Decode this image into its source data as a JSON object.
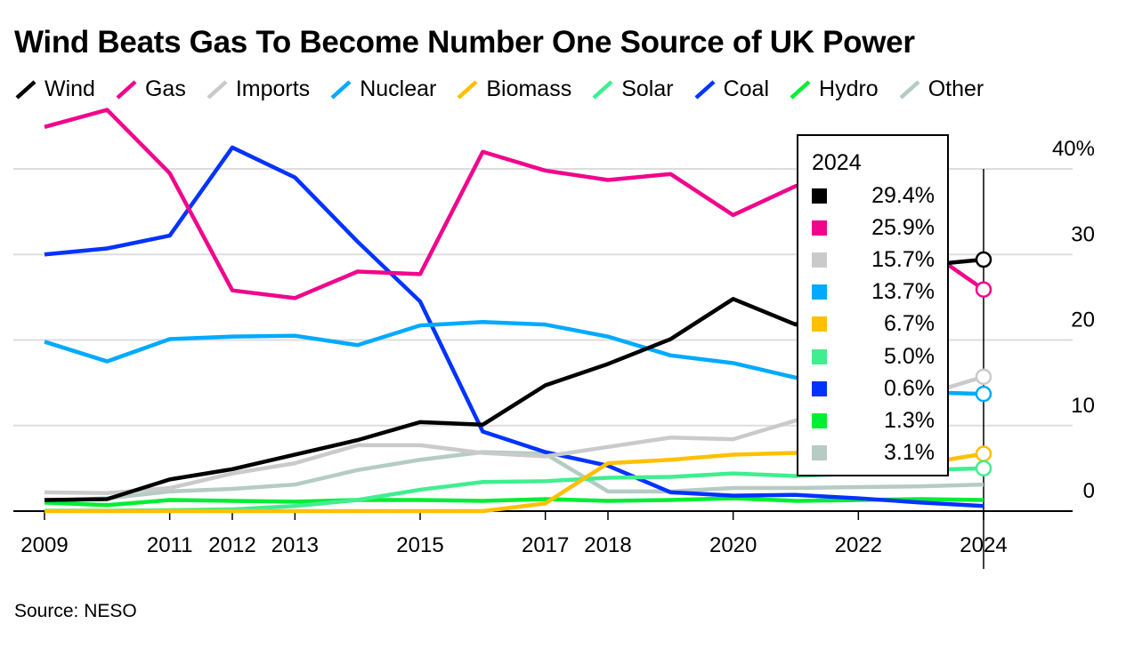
{
  "chart_data": {
    "type": "line",
    "title": "Wind Beats Gas To Become Number One Source of UK Power",
    "source": "Source: NESO",
    "xlabel": "",
    "ylabel": "",
    "ylim": [
      0,
      40
    ],
    "yticks": [
      0,
      10,
      20,
      30,
      40
    ],
    "ytick_labels": [
      "0",
      "10",
      "20",
      "30",
      "40%"
    ],
    "y_axis_side": "right",
    "grid": true,
    "legend_placement": "top",
    "x": [
      2009,
      2010,
      2011,
      2012,
      2013,
      2014,
      2015,
      2016,
      2017,
      2018,
      2019,
      2020,
      2021,
      2022,
      2023,
      2024
    ],
    "xtick_labels": [
      "2009",
      "2011",
      "2012",
      "2013",
      "2015",
      "2017",
      "2018",
      "2020",
      "2022",
      "2024"
    ],
    "series": [
      {
        "name": "Wind",
        "color": "#000000",
        "values": [
          1.3,
          1.4,
          3.7,
          4.9,
          6.6,
          8.3,
          10.4,
          10.1,
          14.7,
          17.2,
          20.1,
          24.8,
          21.8,
          26.5,
          28.7,
          29.4
        ]
      },
      {
        "name": "Gas",
        "color": "#f0068c",
        "values": [
          44.9,
          46.9,
          39.5,
          25.8,
          24.9,
          28.0,
          27.7,
          42.0,
          39.8,
          38.7,
          39.4,
          34.6,
          38.0,
          38.5,
          31.0,
          25.9
        ]
      },
      {
        "name": "Imports",
        "color": "#cacaca",
        "values": [
          2.2,
          2.1,
          2.7,
          4.4,
          5.6,
          7.7,
          7.7,
          6.8,
          6.4,
          7.5,
          8.6,
          8.4,
          10.6,
          11.2,
          13.5,
          15.7
        ]
      },
      {
        "name": "Nuclear",
        "color": "#00aaff",
        "values": [
          19.8,
          17.5,
          20.1,
          20.4,
          20.5,
          19.4,
          21.7,
          22.1,
          21.8,
          20.4,
          18.2,
          17.3,
          15.6,
          14.7,
          13.9,
          13.7
        ]
      },
      {
        "name": "Biomass",
        "color": "#ffc000",
        "values": [
          0,
          0,
          0,
          0,
          0,
          0,
          0,
          0,
          0.9,
          5.6,
          6.0,
          6.6,
          6.8,
          6.5,
          5.5,
          6.7
        ]
      },
      {
        "name": "Solar",
        "color": "#40ee90",
        "values": [
          0.05,
          0.05,
          0.1,
          0.2,
          0.6,
          1.3,
          2.5,
          3.4,
          3.5,
          3.9,
          4.0,
          4.4,
          4.1,
          4.4,
          4.8,
          5.0
        ]
      },
      {
        "name": "Coal",
        "color": "#0033ff",
        "values": [
          30.0,
          30.7,
          32.2,
          42.5,
          39.0,
          31.5,
          24.5,
          9.3,
          6.9,
          5.3,
          2.2,
          1.8,
          1.9,
          1.5,
          1.0,
          0.6
        ]
      },
      {
        "name": "Hydro",
        "color": "#00ee33",
        "values": [
          1.0,
          0.7,
          1.3,
          1.2,
          1.1,
          1.3,
          1.3,
          1.2,
          1.4,
          1.2,
          1.3,
          1.5,
          1.2,
          1.3,
          1.4,
          1.3
        ]
      },
      {
        "name": "Other",
        "color": "#b5cbc4",
        "values": [
          1.2,
          1.5,
          2.3,
          2.6,
          3.1,
          4.8,
          6.0,
          6.9,
          6.7,
          2.3,
          2.3,
          2.7,
          2.7,
          2.8,
          2.9,
          3.1
        ]
      }
    ],
    "tooltip": {
      "year": "2024",
      "rows": [
        {
          "series": "Wind",
          "color": "#000000",
          "label": "29.4%"
        },
        {
          "series": "Gas",
          "color": "#f0068c",
          "label": "25.9%"
        },
        {
          "series": "Imports",
          "color": "#cacaca",
          "label": "15.7%"
        },
        {
          "series": "Nuclear",
          "color": "#00aaff",
          "label": "13.7%"
        },
        {
          "series": "Biomass",
          "color": "#ffc000",
          "label": "6.7%"
        },
        {
          "series": "Solar",
          "color": "#40ee90",
          "label": "5.0%"
        },
        {
          "series": "Coal",
          "color": "#0033ff",
          "label": "0.6%"
        },
        {
          "series": "Hydro",
          "color": "#00ee33",
          "label": "1.3%"
        },
        {
          "series": "Other",
          "color": "#b5cbc4",
          "label": "3.1%"
        }
      ]
    }
  }
}
